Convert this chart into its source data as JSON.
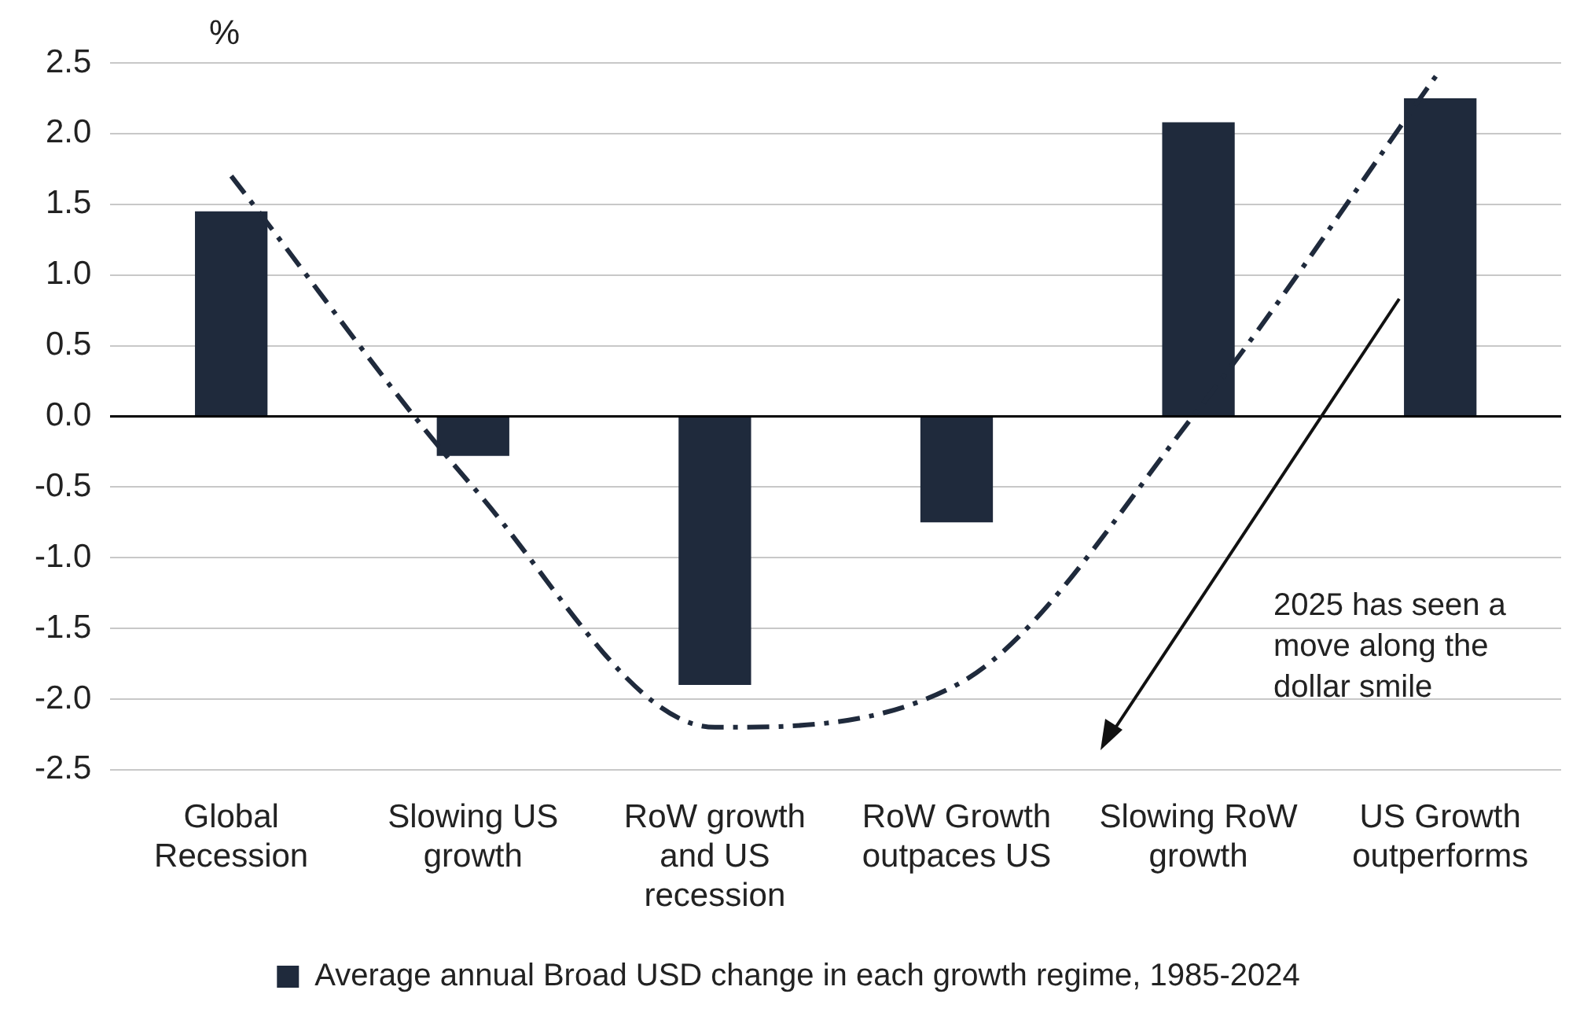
{
  "chart_data": {
    "type": "bar",
    "ylabel": "%",
    "categories": [
      "Global Recession",
      "Slowing US growth",
      "RoW growth and US recession",
      "RoW Growth outpaces US",
      "Slowing RoW growth",
      "US Growth outperforms"
    ],
    "series": [
      {
        "name": "Average annual Broad USD change in each growth regime, 1985-2024",
        "color": "#1f2a3c",
        "values": [
          1.45,
          -0.28,
          -1.9,
          -0.75,
          2.08,
          2.25
        ]
      },
      {
        "type": "line",
        "color": "#1f2a3c",
        "line_style": "dashed",
        "values": [
          1.7,
          -0.5,
          -2.2,
          -1.9,
          0.05,
          2.45
        ]
      }
    ],
    "ylim": [
      -2.5,
      2.5
    ],
    "yticks": [
      {
        "value": -2.5,
        "label": "-2.5"
      },
      {
        "value": -2,
        "label": "-2.0"
      },
      {
        "value": -1.5,
        "label": "-1.5"
      },
      {
        "value": -1,
        "label": "-1.0"
      },
      {
        "value": -0.5,
        "label": "-0.5"
      },
      {
        "value": 0,
        "label": "0.0"
      },
      {
        "value": 0.5,
        "label": "0.5"
      },
      {
        "value": 1,
        "label": "1.0"
      },
      {
        "value": 1.5,
        "label": "1.5"
      },
      {
        "value": 2,
        "label": "2.0"
      },
      {
        "value": 2.5,
        "label": "2.5"
      }
    ],
    "grid": "y",
    "legend": "bottom",
    "marker": "none",
    "annotations": [
      "2025 has seen a move along the dollar smile"
    ]
  }
}
